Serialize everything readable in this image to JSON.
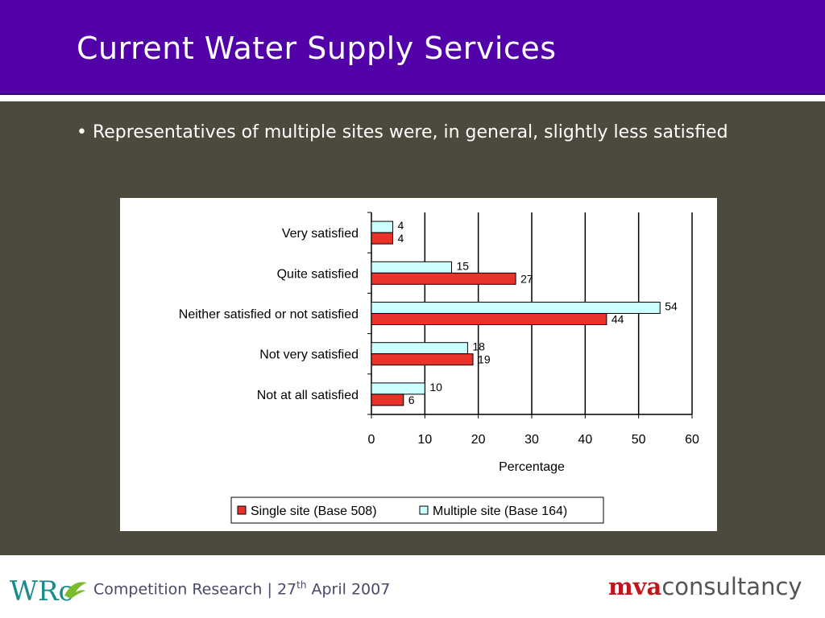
{
  "slide": {
    "title": "Current Water Supply Services",
    "bullet": "• Representatives of multiple sites were, in general, slightly less satisfied"
  },
  "footer": {
    "text_prefix": "Competition Research | 27",
    "text_sup": "th",
    "text_suffix": " April 2007",
    "logo_left_text": "WRc",
    "logo_right_part1": "mva",
    "logo_right_part2": "consultancy"
  },
  "colors": {
    "header": "#5200a8",
    "content_bg": "#4c4a3c",
    "single_site": "#e8322a",
    "multiple_site": "#ccffff"
  },
  "chart_data": {
    "type": "bar",
    "orientation": "horizontal",
    "categories": [
      "Very satisfied",
      "Quite satisfied",
      "Neither satisfied or not satisfied",
      "Not very satisfied",
      "Not at all satisfied"
    ],
    "series": [
      {
        "name": "Single site (Base 508)",
        "values": [
          4,
          27,
          44,
          19,
          6
        ],
        "color": "#e8322a"
      },
      {
        "name": "Multiple site (Base 164)",
        "values": [
          4,
          15,
          54,
          18,
          10
        ],
        "color": "#ccffff"
      }
    ],
    "xlabel": "Percentage",
    "xlim": [
      0,
      60
    ],
    "xticks": [
      "0",
      "10",
      "20",
      "30",
      "40",
      "50",
      "60"
    ],
    "grid": true,
    "legend": "bottom"
  }
}
